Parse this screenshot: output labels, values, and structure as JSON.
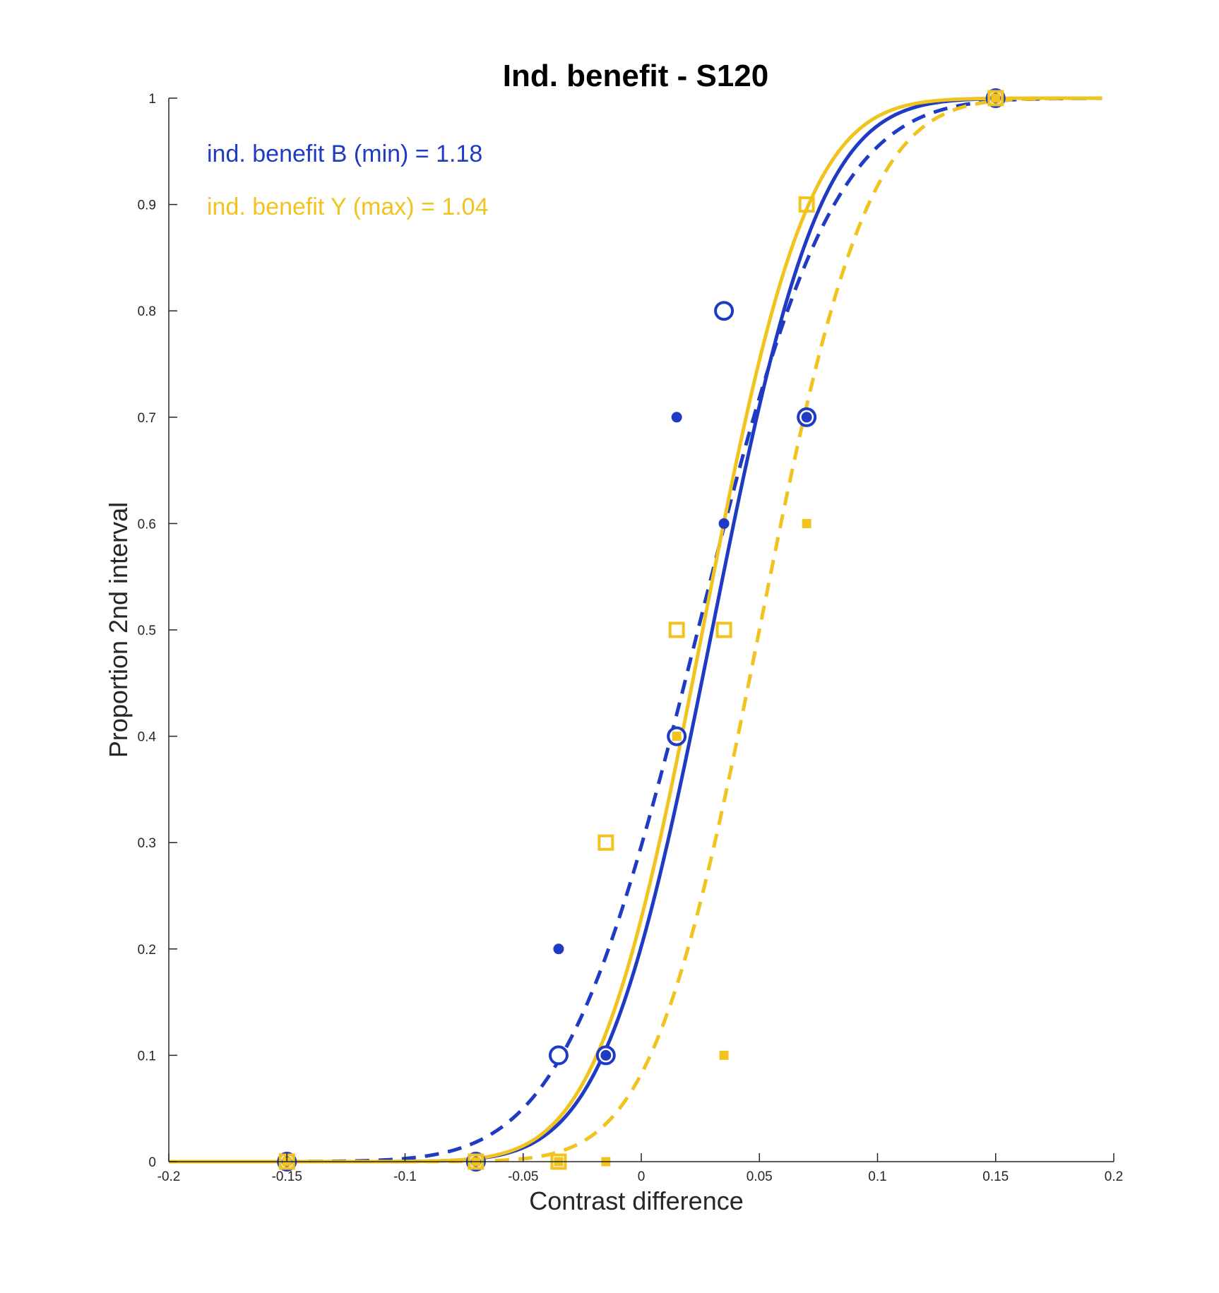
{
  "chart_data": {
    "type": "scatter",
    "title": "Ind. benefit - S120",
    "xlabel": "Contrast difference",
    "ylabel": "Proportion 2nd interval",
    "xlim": [
      -0.2,
      0.2
    ],
    "ylim": [
      0,
      1
    ],
    "x_ticks": [
      -0.2,
      -0.15,
      -0.1,
      -0.05,
      0,
      0.05,
      0.1,
      0.15,
      0.2
    ],
    "x_tick_labels": [
      "-0.2",
      "-0.15",
      "-0.1",
      "-0.05",
      "0",
      "0.05",
      "0.1",
      "0.15",
      "0.2"
    ],
    "y_ticks": [
      0,
      0.1,
      0.2,
      0.3,
      0.4,
      0.5,
      0.6,
      0.7,
      0.8,
      0.9,
      1
    ],
    "y_tick_labels": [
      "0",
      "0.1",
      "0.2",
      "0.3",
      "0.4",
      "0.5",
      "0.6",
      "0.7",
      "0.8",
      "0.9",
      "1"
    ],
    "grid": false,
    "annotations": [
      {
        "text": "ind. benefit B (min) = 1.18",
        "color": "#1f3bc4"
      },
      {
        "text": "ind. benefit Y (max) = 1.04",
        "color": "#f0c31e"
      }
    ],
    "colors": {
      "blue": "#1f3bc4",
      "yellow": "#f0c31e"
    },
    "series": [
      {
        "color": "blue",
        "style": "solid",
        "curve": {
          "mu": 0.03,
          "sigma": 0.036,
          "x_range": [
            -0.2,
            0.15
          ]
        }
      },
      {
        "color": "blue",
        "style": "dashed",
        "curve": {
          "mu": 0.024,
          "sigma": 0.045,
          "x_range": [
            -0.2,
            0.195
          ]
        }
      },
      {
        "color": "yellow",
        "style": "solid",
        "curve": {
          "mu": 0.026,
          "sigma": 0.035,
          "x_range": [
            -0.2,
            0.195
          ]
        }
      },
      {
        "color": "yellow",
        "style": "dashed",
        "curve": {
          "mu": 0.05,
          "sigma": 0.036,
          "x_range": [
            -0.2,
            0.195
          ]
        }
      },
      {
        "color": "blue",
        "marker": "open-circle-large",
        "x": [
          -0.15,
          -0.07,
          -0.035,
          -0.015,
          0.015,
          0.035,
          0.07,
          0.15
        ],
        "y": [
          0,
          0,
          0.1,
          0.1,
          0.4,
          0.8,
          0.7,
          1
        ]
      },
      {
        "color": "blue",
        "marker": "filled-circle",
        "x": [
          -0.15,
          -0.07,
          -0.035,
          -0.015,
          0.015,
          0.035,
          0.07,
          0.15
        ],
        "y": [
          0,
          0,
          0.2,
          0.1,
          0.7,
          0.6,
          0.7,
          1
        ]
      },
      {
        "color": "yellow",
        "marker": "open-square",
        "x": [
          -0.15,
          -0.07,
          -0.035,
          -0.015,
          0.015,
          0.035,
          0.07,
          0.15
        ],
        "y": [
          0,
          0,
          0,
          0.3,
          0.5,
          0.5,
          0.9,
          1
        ]
      },
      {
        "color": "yellow",
        "marker": "filled-square",
        "x": [
          -0.15,
          -0.07,
          -0.035,
          -0.015,
          0.015,
          0.035,
          0.07,
          0.15
        ],
        "y": [
          0,
          0,
          0,
          0,
          0.4,
          0.1,
          0.6,
          1
        ]
      }
    ]
  }
}
